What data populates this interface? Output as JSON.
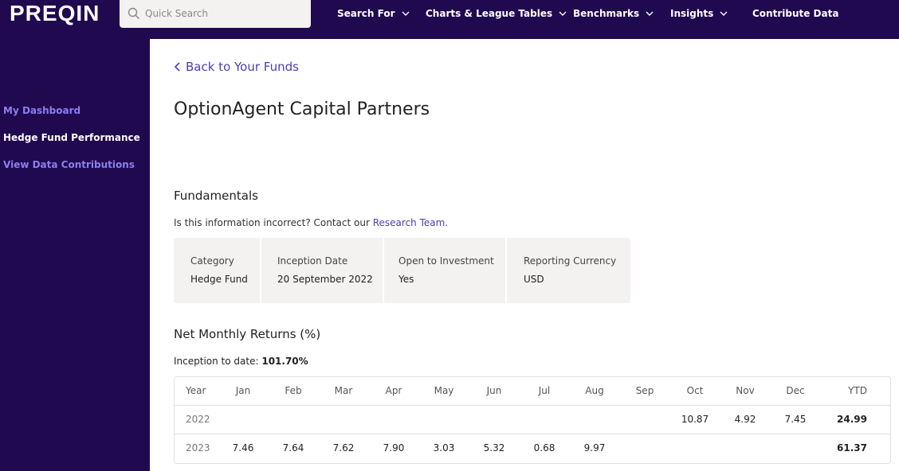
{
  "brand": {
    "logo": "PREQIN"
  },
  "search": {
    "placeholder": "Quick Search"
  },
  "nav": [
    {
      "label": "Search For",
      "dropdown": true
    },
    {
      "label": "Charts & League Tables",
      "dropdown": true
    },
    {
      "label": "Benchmarks",
      "dropdown": true
    },
    {
      "label": "Insights",
      "dropdown": true
    },
    {
      "label": "Contribute Data",
      "dropdown": false
    }
  ],
  "sidebar": {
    "items": [
      {
        "label": "My Dashboard",
        "active": false
      },
      {
        "label": "Hedge Fund Performance",
        "active": true
      },
      {
        "label": "View Data Contributions",
        "active": false
      }
    ]
  },
  "main": {
    "back_label": "Back to Your Funds",
    "fund_name": "OptionAgent Capital Partners",
    "fundamentals": {
      "heading": "Fundamentals",
      "note_prefix": "Is this information incorrect? Contact our ",
      "note_link": "Research Team.",
      "fields": [
        {
          "label": "Category",
          "value": "Hedge Fund"
        },
        {
          "label": "Inception Date",
          "value": "20 September 2022"
        },
        {
          "label": "Open to Investment",
          "value": "Yes"
        },
        {
          "label": "Reporting Currency",
          "value": "USD"
        }
      ]
    },
    "returns": {
      "heading": "Net Monthly Returns (%)",
      "itd_label": "Inception to date:",
      "itd_value": "101.70%",
      "columns": [
        "Year",
        "Jan",
        "Feb",
        "Mar",
        "Apr",
        "May",
        "Jun",
        "Jul",
        "Aug",
        "Sep",
        "Oct",
        "Nov",
        "Dec",
        "YTD"
      ],
      "rows": [
        {
          "year": "2022",
          "months": [
            "",
            "",
            "",
            "",
            "",
            "",
            "",
            "",
            "",
            "10.87",
            "4.92",
            "7.45"
          ],
          "ytd": "24.99"
        },
        {
          "year": "2023",
          "months": [
            "7.46",
            "7.64",
            "7.62",
            "7.90",
            "3.03",
            "5.32",
            "0.68",
            "9.97",
            "",
            "",
            "",
            ""
          ],
          "ytd": "61.37"
        }
      ]
    }
  },
  "colors": {
    "nav_bg": "#20094f",
    "link": "#4b3fb5",
    "sidebar_link": "#8b7ff0",
    "panel_bg": "#f4f2f0"
  }
}
